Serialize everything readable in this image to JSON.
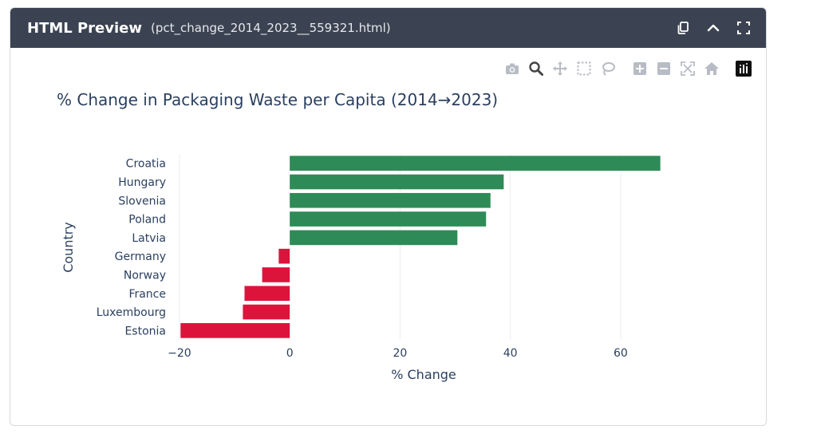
{
  "window": {
    "title": "HTML Preview",
    "file": "(pct_change_2014_2023__559321.html)"
  },
  "header_icons": [
    "copy-icon",
    "chevron-up-icon",
    "fullscreen-icon"
  ],
  "modebar_icons": [
    "camera-icon",
    "zoom-icon",
    "pan-icon",
    "box-select-icon",
    "lasso-icon",
    "zoom-in-icon",
    "zoom-out-icon",
    "autoscale-icon",
    "reset-axes-icon",
    "plotly-logo-icon"
  ],
  "colors": {
    "positive": "#2e8b57",
    "negative": "#dc143c",
    "header_bg": "#3b4352",
    "text": "#2a3f5f",
    "grid": "#ebedf0"
  },
  "chart_data": {
    "type": "bar",
    "orientation": "horizontal",
    "title": "% Change in Packaging Waste per Capita (2014→2023)",
    "xlabel": "% Change",
    "ylabel": "Country",
    "xlim": [
      -21,
      70
    ],
    "xticks": [
      -20,
      0,
      20,
      40,
      60
    ],
    "xtick_labels": [
      "−20",
      "0",
      "20",
      "40",
      "60"
    ],
    "grid": true,
    "categories": [
      "Croatia",
      "Hungary",
      "Slovenia",
      "Poland",
      "Latvia",
      "Germany",
      "Norway",
      "France",
      "Luxembourg",
      "Estonia"
    ],
    "values": [
      67.2,
      38.8,
      36.4,
      35.6,
      30.4,
      -2.0,
      -5.0,
      -8.2,
      -8.5,
      -19.8
    ]
  }
}
